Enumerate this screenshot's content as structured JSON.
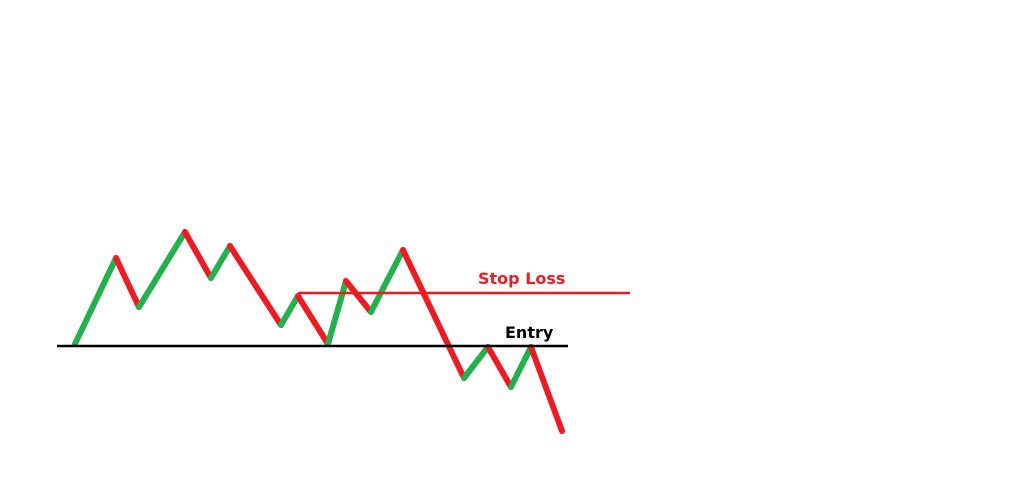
{
  "labels": {
    "stop_loss": "Stop Loss",
    "entry": "Entry"
  },
  "colors": {
    "up": "#22b14c",
    "down": "#ed1c24",
    "stop_loss": "#ed1c24",
    "entry": "#000000",
    "background": "#ffffff"
  }
}
